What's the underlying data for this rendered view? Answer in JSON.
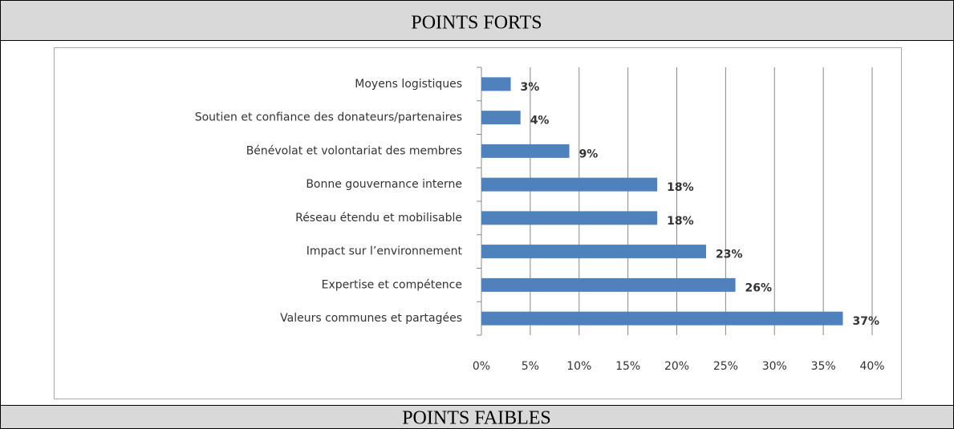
{
  "header": {
    "title": "POINTS FORTS"
  },
  "chart_data": {
    "type": "bar",
    "orientation": "horizontal",
    "categories": [
      "Moyens logistiques",
      "Soutien et confiance des donateurs/partenaires",
      "Bénévolat et volontariat des membres",
      "Bonne gouvernance interne",
      "Réseau étendu et mobilisable",
      "Impact sur l’environnement",
      "Expertise et compétence",
      "Valeurs communes et partagées"
    ],
    "values": [
      3,
      4,
      9,
      18,
      18,
      23,
      26,
      37
    ],
    "value_labels": [
      "3%",
      "4%",
      "9%",
      "18%",
      "18%",
      "23%",
      "26%",
      "37%"
    ],
    "color": "#4f81bd",
    "xlim": [
      0,
      40
    ],
    "xticks": [
      {
        "value": 0,
        "label": "0%"
      },
      {
        "value": 5,
        "label": "5%"
      },
      {
        "value": 10,
        "label": "10%"
      },
      {
        "value": 15,
        "label": "15%"
      },
      {
        "value": 20,
        "label": "20%"
      },
      {
        "value": 25,
        "label": "25%"
      },
      {
        "value": 30,
        "label": "30%"
      },
      {
        "value": 35,
        "label": "35%"
      },
      {
        "value": 40,
        "label": "40%"
      }
    ],
    "grid": true
  },
  "footer": {
    "title": "POINTS FAIBLES"
  }
}
